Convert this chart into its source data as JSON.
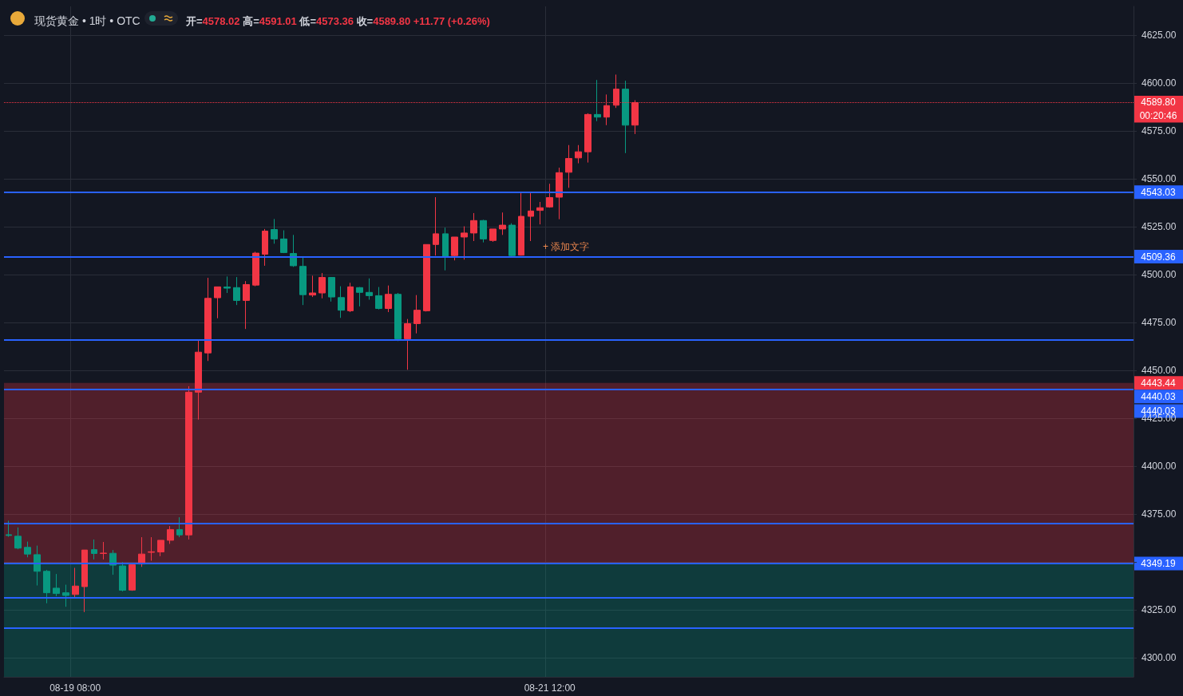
{
  "chart_data": {
    "type": "candlestick",
    "title": "现货黄金 • 1时 • OTC",
    "subtitle": "开=4578.02 高=4591.01 低=4573.36 收=4589.80 +11.77 (+0.26%)",
    "categories": [
      null,
      null,
      null,
      null,
      null,
      null,
      null,
      "08-19 08:00",
      null,
      null,
      null,
      null,
      null,
      null,
      null,
      null,
      null,
      null,
      null,
      null,
      null,
      null,
      null,
      null,
      null,
      null,
      null,
      null,
      null,
      null,
      null,
      null,
      null,
      null,
      null,
      null,
      null,
      null,
      null,
      null,
      null,
      null,
      null,
      null,
      null,
      null,
      null,
      null,
      null,
      null,
      null,
      null,
      null,
      null,
      null,
      null,
      null,
      "08-21 12:00",
      null,
      null,
      null,
      null,
      null,
      null,
      null,
      null,
      null,
      null,
      null,
      null,
      null,
      null,
      null,
      null,
      null,
      null,
      null,
      null,
      null,
      null,
      null,
      null,
      null,
      null,
      null,
      null,
      null,
      null,
      null,
      null,
      null,
      null,
      null,
      null,
      null,
      null,
      null,
      null,
      null,
      null,
      null,
      null,
      null,
      null,
      null,
      null,
      null,
      null,
      null,
      null,
      null,
      null,
      null,
      null,
      null,
      null,
      null,
      null,
      null
    ],
    "ohlc": [
      [
        4364.2,
        4371.5,
        4363.1,
        4363.8
      ],
      [
        4363.4,
        4368.0,
        4356.6,
        4357.2
      ],
      [
        4357.6,
        4360.6,
        4352.4,
        4354.1
      ],
      [
        4353.8,
        4358.5,
        4337.7,
        4345.1
      ],
      [
        4345.1,
        4345.8,
        4328.4,
        4333.9
      ],
      [
        4336.3,
        4343.7,
        4332.1,
        4333.5
      ],
      [
        4333.9,
        4338.1,
        4326.6,
        4332.5
      ],
      [
        4333.0,
        4346.9,
        4331.2,
        4337.4
      ],
      [
        4337.1,
        4356.2,
        4323.8,
        4356.2
      ],
      [
        4356.4,
        4361.7,
        4351.3,
        4354.4
      ],
      [
        4354.4,
        4360.4,
        4351.3,
        4354.6
      ],
      [
        4354.5,
        4356.2,
        4343.3,
        4348.3
      ],
      [
        4347.9,
        4349.9,
        4334.6,
        4335.2
      ],
      [
        4335.3,
        4348.5,
        4334.9,
        4348.5
      ],
      [
        4348.9,
        4362.9,
        4347.4,
        4354.1
      ],
      [
        4355.0,
        4362.9,
        4350.6,
        4355.3
      ],
      [
        4355.2,
        4361.3,
        4353.0,
        4361.3
      ],
      [
        4361.3,
        4368.7,
        4359.4,
        4366.9
      ],
      [
        4366.9,
        4373.3,
        4362.9,
        4364.1
      ],
      [
        4364.1,
        4441.7,
        4361.7,
        4438.6
      ],
      [
        4438.6,
        4466.1,
        4424.3,
        4459.5
      ],
      [
        4459.1,
        4498.3,
        4454.9,
        4487.6
      ],
      [
        4487.9,
        4493.6,
        4477.2,
        4493.6
      ],
      [
        4493.5,
        4499.0,
        4490.4,
        4492.9
      ],
      [
        4493.2,
        4498.7,
        4484.1,
        4486.5
      ],
      [
        4486.5,
        4496.6,
        4471.6,
        4494.8
      ],
      [
        4494.5,
        4511.9,
        4493.9,
        4511.2
      ],
      [
        4510.6,
        4523.8,
        4504.6,
        4522.7
      ],
      [
        4523.5,
        4529.0,
        4516.1,
        4518.6
      ],
      [
        4518.6,
        4523.1,
        4511.2,
        4511.5
      ],
      [
        4511.0,
        4520.7,
        4504.0,
        4504.6
      ],
      [
        4504.3,
        4509.6,
        4484.1,
        4489.5
      ],
      [
        4489.3,
        4499.4,
        4488.3,
        4490.4
      ],
      [
        4490.4,
        4500.8,
        4487.6,
        4498.5
      ],
      [
        4498.5,
        4498.7,
        4485.9,
        4488.3
      ],
      [
        4488.0,
        4493.9,
        4477.4,
        4481.4
      ],
      [
        4481.1,
        4495.7,
        4480.4,
        4493.6
      ],
      [
        4493.2,
        4493.5,
        4483.4,
        4490.7
      ],
      [
        4490.7,
        4498.0,
        4486.9,
        4489.0
      ],
      [
        4489.0,
        4493.5,
        4481.8,
        4482.3
      ],
      [
        4482.3,
        4494.3,
        4480.4,
        4489.7
      ],
      [
        4489.7,
        4490.4,
        4465.3,
        4466.5
      ],
      [
        4466.5,
        4476.8,
        4450.3,
        4474.4
      ],
      [
        4474.4,
        4489.3,
        4469.3,
        4481.4
      ],
      [
        4481.1,
        4515.7,
        4480.7,
        4515.7
      ],
      [
        4515.7,
        4540.4,
        4509.9,
        4521.3
      ],
      [
        4521.3,
        4524.5,
        4502.2,
        4509.6
      ],
      [
        4509.9,
        4519.6,
        4507.4,
        4519.6
      ],
      [
        4519.6,
        4525.2,
        4507.8,
        4521.7
      ],
      [
        4521.7,
        4532.1,
        4517.5,
        4528.2
      ],
      [
        4528.2,
        4528.6,
        4516.8,
        4518.6
      ],
      [
        4517.8,
        4523.8,
        4517.1,
        4523.8
      ],
      [
        4523.8,
        4532.4,
        4520.7,
        4525.8
      ],
      [
        4525.8,
        4526.8,
        4509.1,
        4509.9
      ],
      [
        4510.1,
        4542.9,
        4509.9,
        4530.4
      ],
      [
        4530.4,
        4542.5,
        4517.5,
        4533.2
      ],
      [
        4533.5,
        4537.9,
        4526.2,
        4534.9
      ],
      [
        4535.3,
        4547.4,
        4534.9,
        4540.2
      ],
      [
        4540.4,
        4555.8,
        4528.9,
        4553.2
      ],
      [
        4553.4,
        4567.6,
        4545.3,
        4560.6
      ],
      [
        4560.9,
        4567.6,
        4558.1,
        4564.1
      ],
      [
        4564.1,
        4584.2,
        4558.5,
        4583.6
      ],
      [
        4583.6,
        4601.6,
        4580.1,
        4582.2
      ],
      [
        4582.2,
        4594.0,
        4578.0,
        4588.2
      ],
      [
        4588.4,
        4604.4,
        4587.0,
        4596.8
      ],
      [
        4596.8,
        4601.2,
        4563.4,
        4578.0
      ],
      [
        4578.02,
        4591.01,
        4573.36,
        4589.8
      ],
      null,
      null,
      null,
      null,
      null,
      null,
      null,
      null,
      null,
      null,
      null,
      null,
      null,
      null,
      null,
      null,
      null,
      null,
      null,
      null,
      null,
      null,
      null,
      null,
      null,
      null,
      null,
      null,
      null,
      null,
      null,
      null,
      null,
      null,
      null,
      null,
      null,
      null,
      null,
      null,
      null,
      null,
      null,
      null,
      null,
      null,
      null,
      null,
      null,
      null,
      null,
      null
    ],
    "colors": [
      "#089981",
      "#089981",
      "#089981",
      "#089981",
      "#089981",
      "#089981",
      "#089981",
      "#f23645",
      "#f23645",
      "#089981",
      "#f23645",
      "#089981",
      "#089981",
      "#f23645",
      "#f23645",
      "#f23645",
      "#f23645",
      "#f23645",
      "#089981",
      "#f23645",
      "#f23645",
      "#f23645",
      "#f23645",
      "#089981",
      "#089981",
      "#f23645",
      "#f23645",
      "#f23645",
      "#089981",
      "#089981",
      "#089981",
      "#089981",
      "#f23645",
      "#f23645",
      "#089981",
      "#089981",
      "#f23645",
      "#089981",
      "#089981",
      "#089981",
      "#f23645",
      "#089981",
      "#f23645",
      "#f23645",
      "#f23645",
      "#f23645",
      "#089981",
      "#f23645",
      "#f23645",
      "#f23645",
      "#089981",
      "#f23645",
      "#f23645",
      "#089981",
      "#f23645",
      "#f23645",
      "#f23645",
      "#f23645",
      "#f23645",
      "#f23645",
      "#f23645",
      "#f23645",
      "#089981",
      "#f23645",
      "#f23645",
      "#089981",
      "#f23645",
      null,
      null,
      null,
      null,
      null,
      null,
      null,
      null,
      null,
      null,
      null,
      null,
      null,
      null,
      null,
      null,
      null,
      null,
      null,
      null,
      null,
      null,
      null,
      null,
      null,
      null,
      null,
      null,
      null,
      null,
      null,
      null,
      null,
      null,
      null,
      null,
      null,
      null,
      null,
      null,
      null,
      null,
      null,
      null,
      null,
      null,
      null,
      null,
      null,
      null,
      null,
      null
    ],
    "ylim": [
      4290,
      4640
    ],
    "yticks": [
      {
        "value": 4300,
        "label": "4300.00"
      },
      {
        "value": 4325,
        "label": "4325.00"
      },
      {
        "value": 4350,
        "label": null
      },
      {
        "value": 4375,
        "label": "4375.00"
      },
      {
        "value": 4400,
        "label": "4400.00"
      },
      {
        "value": 4425,
        "label": "4425.00"
      },
      {
        "value": 4450,
        "label": "4450.00"
      },
      {
        "value": 4475,
        "label": "4475.00"
      },
      {
        "value": 4500,
        "label": "4500.00"
      },
      {
        "value": 4525,
        "label": "4525.00"
      },
      {
        "value": 4550,
        "label": "4550.00"
      },
      {
        "value": 4575,
        "label": "4575.00"
      },
      {
        "value": 4600,
        "label": "4600.00"
      },
      {
        "value": 4625,
        "label": "4625.00"
      }
    ],
    "grid": true,
    "ref_lines": [
      {
        "axis": "y",
        "value": 4543.03,
        "label": "4543.03",
        "color": "#2962ff"
      },
      {
        "axis": "y",
        "value": 4509.36,
        "label": "4509.36",
        "color": "#2962ff"
      },
      {
        "axis": "y",
        "value": 4466.1,
        "label": null,
        "color": "#2962ff"
      },
      {
        "axis": "y",
        "value": 4440.03,
        "label": "4440.03",
        "color": "#2962ff"
      },
      {
        "axis": "y",
        "value": 4370.1,
        "label": null,
        "color": "#2962ff"
      },
      {
        "axis": "y",
        "value": 4349.19,
        "label": "4349.19",
        "color": "#2962ff"
      },
      {
        "axis": "y",
        "value": 4331.3,
        "label": null,
        "color": "#2962ff"
      },
      {
        "axis": "y",
        "value": 4315.4,
        "label": null,
        "color": "#2962ff"
      },
      {
        "axis": "y",
        "value": 4589.8,
        "label": "4589.80",
        "color": "#f23645",
        "line_style": "dotted"
      }
    ],
    "bands": [
      {
        "axis": "y",
        "from": 4349.19,
        "to": 4443.44,
        "label": "4443.44",
        "color": "#f23645"
      },
      {
        "axis": "y",
        "from": 4290,
        "to": 4349.19,
        "label": null,
        "color": "#089981"
      }
    ],
    "annotations": [
      "00:20:46",
      "4440.03",
      "+ 添加文字"
    ]
  }
}
